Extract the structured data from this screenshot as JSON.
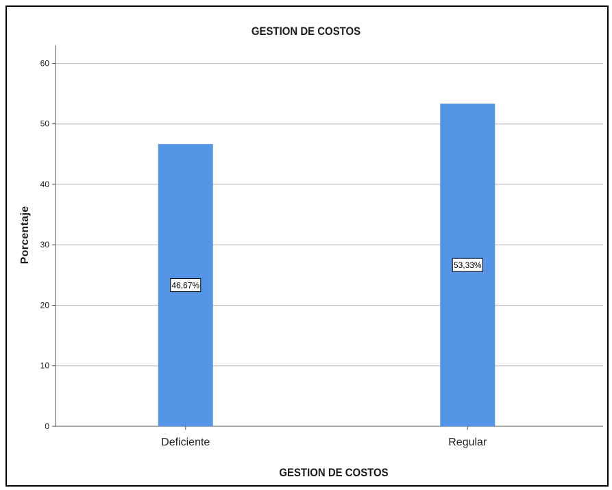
{
  "chart_data": {
    "type": "bar",
    "title": "GESTION DE COSTOS",
    "xlabel": "GESTION DE COSTOS",
    "ylabel": "Porcentaje",
    "categories": [
      "Deficiente",
      "Regular"
    ],
    "values": [
      46.67,
      53.33
    ],
    "data_labels": [
      "46,67%",
      "53,33%"
    ],
    "ylim": [
      0,
      63
    ],
    "yticks": [
      0,
      10,
      20,
      30,
      40,
      50,
      60
    ],
    "grid": true,
    "bar_color": "#5595e5"
  }
}
